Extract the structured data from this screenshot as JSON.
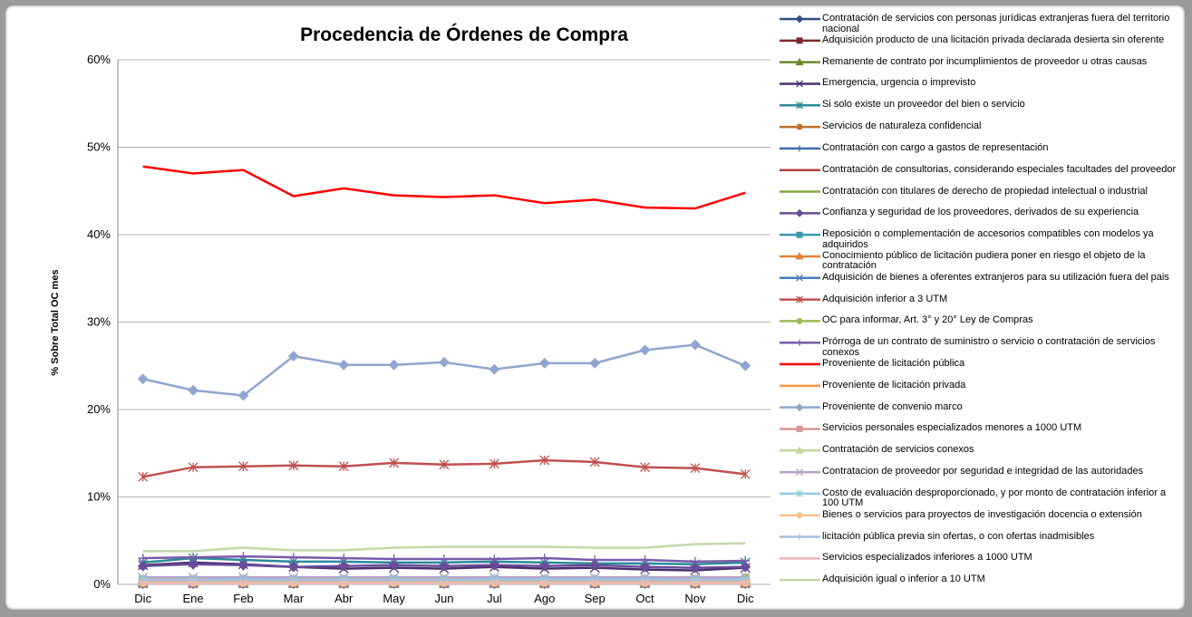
{
  "chart_data": {
    "type": "line",
    "title": "Procedencia de Órdenes de Compra",
    "ylabel": "% Sobre  Total OC mes",
    "categories": [
      "Dic",
      "Ene",
      "Feb",
      "Mar",
      "Abr",
      "May",
      "Jun",
      "Jul",
      "Ago",
      "Sep",
      "Oct",
      "Nov",
      "Dic"
    ],
    "ylim": [
      0,
      60
    ],
    "yticks": [
      {
        "value": 0,
        "label": "0%"
      },
      {
        "value": 10,
        "label": "10%"
      },
      {
        "value": 20,
        "label": "20%"
      },
      {
        "value": 30,
        "label": "30%"
      },
      {
        "value": 40,
        "label": "40%"
      },
      {
        "value": 50,
        "label": "50%"
      },
      {
        "value": 60,
        "label": "60%"
      }
    ],
    "grid": true,
    "legend": "right",
    "series": [
      {
        "name": "Contratación de servicios con personas jurídicas extranjeras fuera del territorio nacional",
        "color": "#2f4f7f",
        "marker": "diamond",
        "values": [
          0.1,
          0.1,
          0.1,
          0.1,
          0.1,
          0.1,
          0.1,
          0.1,
          0.1,
          0.1,
          0.1,
          0.1,
          0.1
        ]
      },
      {
        "name": "Adquisición producto de una licitación privada declarada desierta sin oferente",
        "color": "#7f2a2a",
        "marker": "square",
        "values": [
          0.1,
          0.1,
          0.1,
          0.1,
          0.1,
          0.1,
          0.1,
          0.1,
          0.1,
          0.1,
          0.1,
          0.1,
          0.1
        ]
      },
      {
        "name": "Remanente de contrato por incumplimientos de proveedor u otras causas",
        "color": "#6b8a2e",
        "marker": "triangle",
        "values": [
          0.2,
          0.2,
          0.2,
          0.2,
          0.2,
          0.2,
          0.2,
          0.2,
          0.2,
          0.2,
          0.2,
          0.2,
          0.2
        ]
      },
      {
        "name": "Emergencia, urgencia o imprevisto",
        "color": "#4b2e6e",
        "marker": "x",
        "values": [
          2.2,
          2.5,
          2.3,
          2.0,
          1.8,
          1.9,
          1.8,
          2.0,
          1.8,
          1.9,
          1.7,
          1.6,
          1.9
        ]
      },
      {
        "name": "Si solo existe un proveedor del bien o servicio",
        "color": "#2a8a9a",
        "marker": "asterisk",
        "values": [
          2.5,
          3.0,
          2.8,
          2.6,
          2.6,
          2.5,
          2.5,
          2.6,
          2.5,
          2.4,
          2.4,
          2.3,
          2.5
        ]
      },
      {
        "name": "Servicios de naturaleza confidencial",
        "color": "#c0702a",
        "marker": "circle",
        "values": [
          0.1,
          0.1,
          0.1,
          0.1,
          0.1,
          0.1,
          0.1,
          0.1,
          0.1,
          0.1,
          0.1,
          0.1,
          0.1
        ]
      },
      {
        "name": "Contratación con cargo a gastos de representación",
        "color": "#3a6ab0",
        "marker": "plus",
        "values": [
          0.1,
          0.1,
          0.1,
          0.1,
          0.1,
          0.1,
          0.1,
          0.1,
          0.1,
          0.1,
          0.1,
          0.1,
          0.1
        ]
      },
      {
        "name": "Contratación de consultorias, considerando especiales facultades del proveedor",
        "color": "#b04040",
        "marker": "dash",
        "values": [
          0.3,
          0.3,
          0.3,
          0.3,
          0.3,
          0.3,
          0.3,
          0.3,
          0.3,
          0.3,
          0.3,
          0.3,
          0.3
        ]
      },
      {
        "name": "Contratación con titulares de derecho de propiedad intelectual o industrial",
        "color": "#80a840",
        "marker": "none",
        "values": [
          0.1,
          0.1,
          0.1,
          0.1,
          0.1,
          0.1,
          0.1,
          0.1,
          0.1,
          0.1,
          0.1,
          0.1,
          0.1
        ]
      },
      {
        "name": "Confianza y seguridad de los proveedores, derivados de su experiencia",
        "color": "#6a4a9a",
        "marker": "diamond",
        "values": [
          2.1,
          2.3,
          2.2,
          2.0,
          2.1,
          2.2,
          2.1,
          2.2,
          2.1,
          2.2,
          2.0,
          1.9,
          2.0
        ]
      },
      {
        "name": "Reposición o complementación de accesorios compatibles con modelos ya adquiridos",
        "color": "#3a9aaa",
        "marker": "square",
        "values": [
          0.5,
          0.5,
          0.5,
          0.5,
          0.5,
          0.5,
          0.5,
          0.5,
          0.5,
          0.5,
          0.5,
          0.5,
          0.5
        ]
      },
      {
        "name": "Conocimiento público de licitación pudiera poner en riesgo el objeto de la contratación",
        "color": "#e0803a",
        "marker": "triangle",
        "values": [
          0.2,
          0.2,
          0.2,
          0.2,
          0.2,
          0.2,
          0.2,
          0.2,
          0.2,
          0.2,
          0.2,
          0.2,
          0.2
        ]
      },
      {
        "name": "Adquisición de bienes a oferentes extranjeros para su utilización fuera del pais",
        "color": "#4a7ac0",
        "marker": "x",
        "values": [
          0.1,
          0.1,
          0.1,
          0.1,
          0.1,
          0.1,
          0.1,
          0.1,
          0.1,
          0.1,
          0.1,
          0.1,
          0.1
        ]
      },
      {
        "name": "Adquisición inferior a 3 UTM",
        "color": "#c0504d",
        "marker": "asterisk",
        "values": [
          12.3,
          13.4,
          13.5,
          13.6,
          13.5,
          13.9,
          13.7,
          13.8,
          14.2,
          14.0,
          13.4,
          13.3,
          12.6
        ]
      },
      {
        "name": "OC para informar, Art. 3° y 20° Ley de Compras",
        "color": "#9bbb59",
        "marker": "circle",
        "values": [
          0.5,
          0.5,
          0.5,
          0.5,
          0.5,
          0.5,
          0.6,
          0.6,
          0.6,
          0.6,
          0.6,
          0.6,
          0.8
        ]
      },
      {
        "name": "Prórroga de un contrato de suministro o servicio o contratación de servicios conexos",
        "color": "#7a5aaa",
        "marker": "plus",
        "values": [
          3.0,
          3.1,
          3.2,
          3.1,
          3.0,
          2.9,
          2.9,
          2.9,
          3.0,
          2.8,
          2.8,
          2.6,
          2.7
        ]
      },
      {
        "name": "Proveniente de licitación pública",
        "color": "#ff0000",
        "marker": "none",
        "values": [
          47.8,
          47.0,
          47.4,
          44.4,
          45.3,
          44.5,
          44.3,
          44.5,
          43.6,
          44.0,
          43.1,
          43.0,
          44.8
        ]
      },
      {
        "name": "Proveniente de licitación privada",
        "color": "#f79646",
        "marker": "dash",
        "values": [
          0.2,
          0.2,
          0.2,
          0.2,
          0.2,
          0.2,
          0.2,
          0.2,
          0.2,
          0.2,
          0.2,
          0.2,
          0.2
        ]
      },
      {
        "name": "Proveniente de convenio marco",
        "color": "#8ea6cf",
        "marker": "diamond",
        "values": [
          23.5,
          22.2,
          21.6,
          26.1,
          25.1,
          25.1,
          25.4,
          24.6,
          25.3,
          25.3,
          26.8,
          27.4,
          25.0
        ]
      },
      {
        "name": "Servicios personales especializados menores a 1000 UTM",
        "color": "#d99694",
        "marker": "square",
        "values": [
          0.3,
          0.3,
          0.3,
          0.3,
          0.3,
          0.3,
          0.3,
          0.3,
          0.3,
          0.3,
          0.3,
          0.3,
          0.3
        ]
      },
      {
        "name": "Contratación de servicios conexos",
        "color": "#c3d69b",
        "marker": "triangle",
        "values": [
          0.6,
          0.6,
          0.6,
          0.6,
          0.6,
          0.6,
          0.6,
          0.6,
          0.6,
          0.6,
          0.6,
          0.6,
          0.6
        ]
      },
      {
        "name": "Contratacion de proveedor por seguridad e integridad de las autoridades",
        "color": "#b3a2c7",
        "marker": "x",
        "values": [
          0.8,
          0.8,
          0.8,
          0.8,
          0.8,
          0.8,
          0.8,
          0.8,
          0.8,
          0.8,
          0.8,
          0.8,
          0.8
        ]
      },
      {
        "name": "Costo de evaluación desproporcionado, y por monto de contratación inferior a 100 UTM",
        "color": "#93cddd",
        "marker": "asterisk",
        "values": [
          0.5,
          0.5,
          0.5,
          0.5,
          0.5,
          0.5,
          0.5,
          0.5,
          0.5,
          0.5,
          0.5,
          0.5,
          0.5
        ]
      },
      {
        "name": "Bienes o servicios para proyectos de investigación docencia o extensión",
        "color": "#fac090",
        "marker": "circle",
        "values": [
          0.2,
          0.2,
          0.2,
          0.2,
          0.2,
          0.2,
          0.2,
          0.2,
          0.2,
          0.2,
          0.2,
          0.2,
          0.2
        ]
      },
      {
        "name": "licitación pública previa sin ofertas, o con ofertas inadmisibles",
        "color": "#a6bfe0",
        "marker": "plus",
        "values": [
          0.5,
          0.5,
          0.6,
          0.5,
          0.5,
          0.5,
          0.5,
          0.6,
          0.6,
          0.6,
          0.6,
          0.5,
          0.6
        ]
      },
      {
        "name": "Servicios especializados inferiores a 1000 UTM",
        "color": "#e6b9b8",
        "marker": "dash",
        "values": [
          0.1,
          0.1,
          0.1,
          0.1,
          0.1,
          0.1,
          0.1,
          0.1,
          0.1,
          0.1,
          0.1,
          0.1,
          0.1
        ]
      },
      {
        "name": "Adquisición igual o inferior a 10 UTM",
        "color": "#c4d9a8",
        "marker": "none",
        "values": [
          3.8,
          3.8,
          4.2,
          3.9,
          3.9,
          4.2,
          4.3,
          4.3,
          4.3,
          4.2,
          4.2,
          4.6,
          4.7
        ]
      }
    ]
  }
}
